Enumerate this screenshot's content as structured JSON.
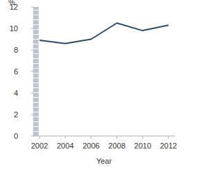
{
  "chart_data": {
    "type": "line",
    "y_label": "%",
    "x_label": "Year",
    "x": [
      2002,
      2004,
      2006,
      2008,
      2010,
      2012
    ],
    "values": [
      8.9,
      8.6,
      9.0,
      10.5,
      9.8,
      10.3
    ],
    "color": "#2b4a6f",
    "xlim": [
      2001.5,
      2012.5
    ],
    "xticks": [
      2002,
      2004,
      2006,
      2008,
      2010,
      2012
    ],
    "ylim": [
      0,
      12
    ],
    "yticks": [
      0,
      2,
      4,
      6,
      8,
      10,
      12
    ],
    "grid": false
  }
}
